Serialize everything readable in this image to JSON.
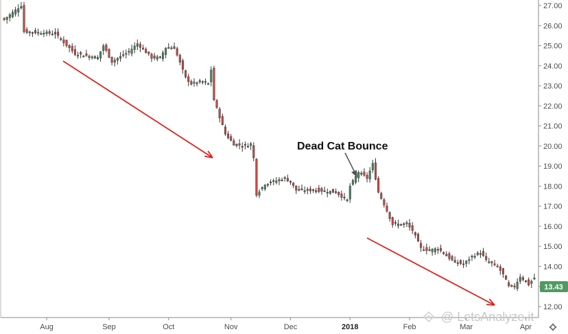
{
  "chart_data": {
    "type": "candlestick",
    "title": "",
    "xlabel": "",
    "ylabel": "",
    "ylim": [
      12.0,
      27.2
    ],
    "grid": false,
    "y_ticks": [
      "27.00",
      "26.00",
      "25.00",
      "24.00",
      "23.00",
      "22.00",
      "21.00",
      "20.00",
      "19.00",
      "18.00",
      "17.00",
      "16.00",
      "15.00",
      "14.00",
      "13.00",
      "12.00"
    ],
    "x_ticks": [
      {
        "label": "Aug",
        "bar": 15,
        "bold": false
      },
      {
        "label": "Sep",
        "bar": 37,
        "bold": false
      },
      {
        "label": "Oct",
        "bar": 58,
        "bold": false
      },
      {
        "label": "Nov",
        "bar": 80,
        "bold": false
      },
      {
        "label": "Dec",
        "bar": 101,
        "bold": false
      },
      {
        "label": "2018",
        "bar": 122,
        "bold": true
      },
      {
        "label": "Feb",
        "bar": 143,
        "bold": false
      },
      {
        "label": "Mar",
        "bar": 163,
        "bold": false
      },
      {
        "label": "Apr",
        "bar": 184,
        "bold": false
      }
    ],
    "bar_count": 188,
    "waypoints": [
      [
        0,
        26.3
      ],
      [
        6,
        27.0
      ],
      [
        7,
        25.7
      ],
      [
        18,
        25.6
      ],
      [
        25,
        24.6
      ],
      [
        33,
        24.4
      ],
      [
        35,
        25.0
      ],
      [
        38,
        24.2
      ],
      [
        44,
        24.7
      ],
      [
        47,
        25.1
      ],
      [
        52,
        24.4
      ],
      [
        55,
        24.4
      ],
      [
        57,
        24.9
      ],
      [
        60,
        24.9
      ],
      [
        64,
        23.4
      ],
      [
        66,
        23.1
      ],
      [
        69,
        23.2
      ],
      [
        72,
        23.1
      ],
      [
        73,
        23.8
      ],
      [
        74,
        22.3
      ],
      [
        78,
        20.6
      ],
      [
        81,
        20.1
      ],
      [
        85,
        20.0
      ],
      [
        87,
        20.1
      ],
      [
        88,
        19.4
      ],
      [
        89,
        17.6
      ],
      [
        92,
        18.1
      ],
      [
        99,
        18.4
      ],
      [
        101,
        18.2
      ],
      [
        103,
        17.8
      ],
      [
        110,
        17.8
      ],
      [
        117,
        17.7
      ],
      [
        120,
        17.4
      ],
      [
        121,
        17.3
      ],
      [
        122,
        18.0
      ],
      [
        125,
        18.7
      ],
      [
        128,
        18.4
      ],
      [
        130,
        19.1
      ],
      [
        132,
        17.7
      ],
      [
        134,
        17.1
      ],
      [
        137,
        16.1
      ],
      [
        142,
        16.1
      ],
      [
        144,
        15.8
      ],
      [
        147,
        14.9
      ],
      [
        150,
        14.8
      ],
      [
        153,
        14.9
      ],
      [
        158,
        14.3
      ],
      [
        162,
        14.1
      ],
      [
        165,
        14.5
      ],
      [
        168,
        14.7
      ],
      [
        170,
        14.3
      ],
      [
        174,
        14.0
      ],
      [
        176,
        13.6
      ],
      [
        178,
        13.0
      ],
      [
        180,
        13.0
      ],
      [
        182,
        13.5
      ],
      [
        185,
        13.1
      ],
      [
        187,
        13.43
      ]
    ],
    "up_color": "#4a8a5f",
    "down_color": "#c94b44",
    "wick_color": "#333333",
    "last_price": "13.43",
    "last_price_color": "#4f9a62",
    "annotations": {
      "label": "Dead Cat Bounce",
      "arrow_color": "#555555"
    },
    "trend_arrows": {
      "color": "#e0201b",
      "count": 2
    }
  },
  "watermark": {
    "text": "@ LetsAnalyze.it"
  },
  "toolbar": {
    "settings_icon": "gear-icon"
  }
}
